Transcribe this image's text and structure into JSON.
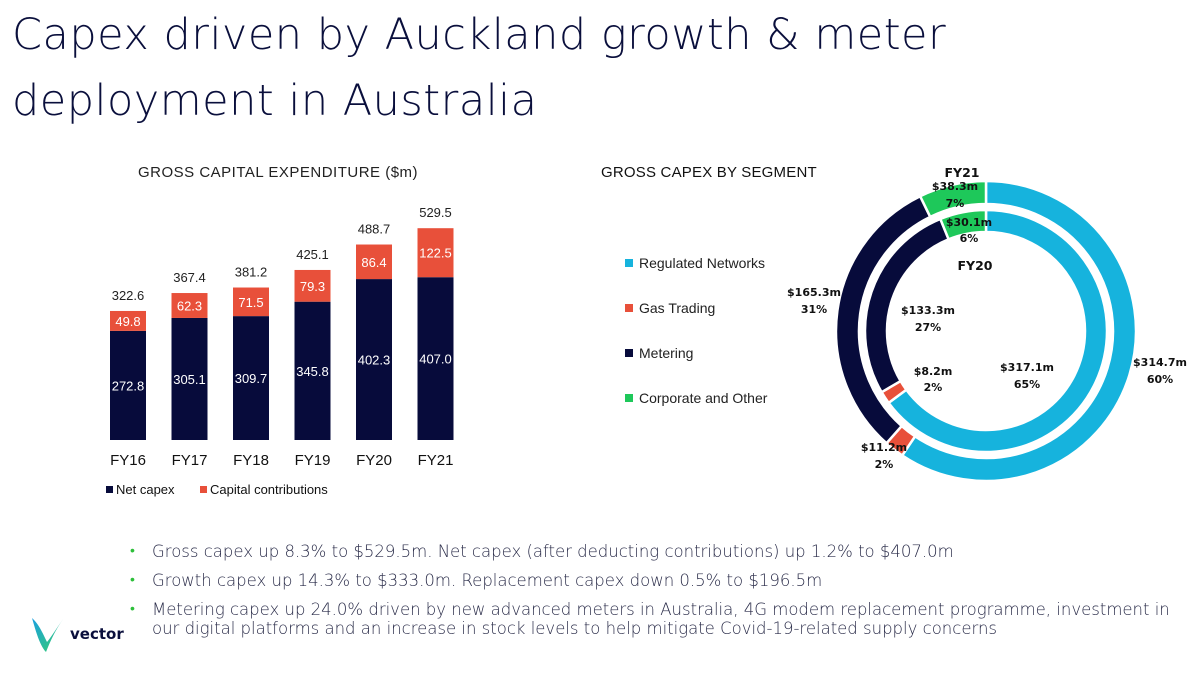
{
  "title": "Capex driven by Auckland growth & meter deployment in Australia",
  "bar_chart_title": "GROSS CAPITAL EXPENDITURE ($m)",
  "segment_chart_title": "GROSS CAPEX BY SEGMENT",
  "colors": {
    "net_capex": "#070b3b",
    "capital_contributions": "#e8503a",
    "regulated_networks": "#16b3dd",
    "gas_trading": "#e8503a",
    "metering": "#070b3b",
    "corporate_other": "#1ec85a",
    "bullet": "#2dbf3a",
    "logo_blue": "#1b9fe0",
    "logo_green": "#35d06a"
  },
  "chart_data": [
    {
      "type": "bar",
      "stacked": true,
      "title": "GROSS CAPITAL EXPENDITURE ($m)",
      "categories": [
        "FY16",
        "FY17",
        "FY18",
        "FY19",
        "FY20",
        "FY21"
      ],
      "series": [
        {
          "name": "Net capex",
          "values": [
            272.8,
            305.1,
            309.7,
            345.8,
            402.3,
            407.0
          ],
          "labels": [
            "272.8",
            "305.1",
            "309.7",
            "345.8",
            "402.3",
            "407.0"
          ]
        },
        {
          "name": "Capital contributions",
          "values": [
            49.8,
            62.3,
            71.5,
            79.3,
            86.4,
            122.5
          ],
          "labels": [
            "49.8",
            "62.3",
            "71.5",
            "79.3",
            "86.4",
            "122.5"
          ]
        }
      ],
      "totals": [
        "322.6",
        "367.4",
        "381.2",
        "425.1",
        "488.7",
        "529.5"
      ],
      "legend_position": "bottom-left",
      "grid": false
    },
    {
      "type": "pie",
      "variant": "nested-donut",
      "title": "GROSS CAPEX BY SEGMENT",
      "legend": [
        "Regulated Networks",
        "Gas Trading",
        "Metering",
        "Corporate and Other"
      ],
      "legend_position": "left",
      "rings": [
        {
          "name": "FY21",
          "slices": [
            {
              "segment": "Regulated Networks",
              "value": 314.7,
              "label": "$314.7m",
              "pct": "60%"
            },
            {
              "segment": "Gas Trading",
              "value": 11.2,
              "label": "$11.2m",
              "pct": "2%"
            },
            {
              "segment": "Metering",
              "value": 165.3,
              "label": "$165.3m",
              "pct": "31%"
            },
            {
              "segment": "Corporate and Other",
              "value": 38.3,
              "label": "$38.3m",
              "pct": "7%"
            }
          ]
        },
        {
          "name": "FY20",
          "slices": [
            {
              "segment": "Regulated Networks",
              "value": 317.1,
              "label": "$317.1m",
              "pct": "65%"
            },
            {
              "segment": "Gas Trading",
              "value": 8.2,
              "label": "$8.2m",
              "pct": "2%"
            },
            {
              "segment": "Metering",
              "value": 133.3,
              "label": "$133.3m",
              "pct": "27%"
            },
            {
              "segment": "Corporate and Other",
              "value": 30.1,
              "label": "$30.1m",
              "pct": "6%"
            }
          ]
        }
      ]
    }
  ],
  "bullets": [
    "Gross capex up 8.3% to $529.5m.  Net capex (after deducting contributions) up 1.2% to $407.0m",
    "Growth capex up 14.3% to $333.0m.  Replacement capex down 0.5% to $196.5m",
    "Metering capex up 24.0% driven by new advanced meters in Australia, 4G modem replacement programme, investment in our digital platforms and an increase in stock levels to help mitigate Covid-19-related supply concerns"
  ],
  "bullet_glyph": "•",
  "logo": {
    "text": "vector"
  }
}
